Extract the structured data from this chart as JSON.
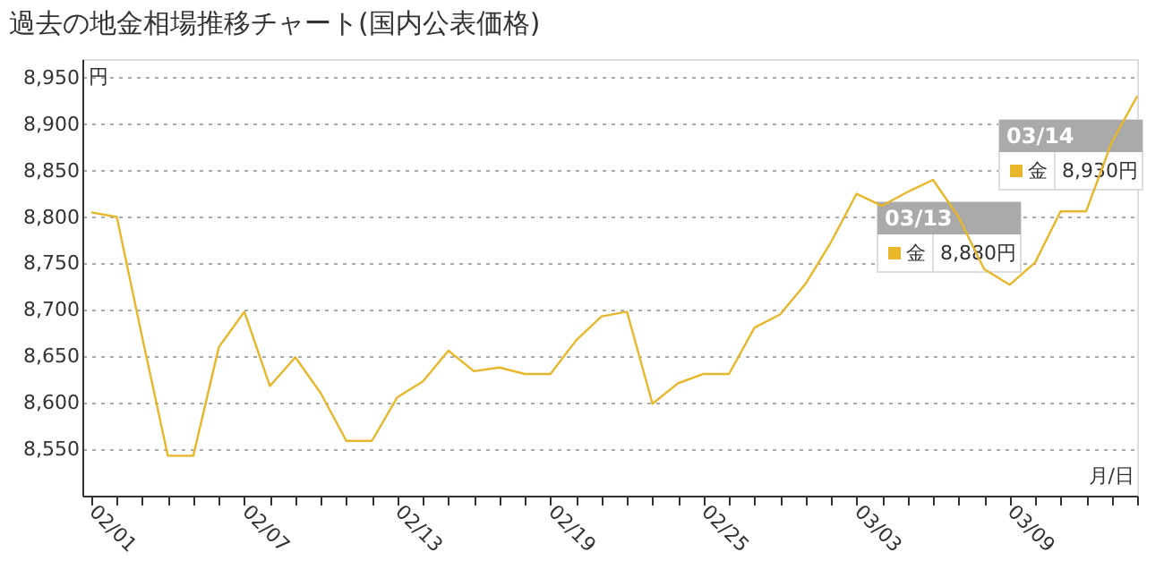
{
  "chart_data": {
    "type": "line",
    "title": "過去の地金相場推移チャート(国内公表価格)",
    "ylabel": "円",
    "xlabel": "月/日",
    "categories": [
      "02/01",
      null,
      null,
      null,
      null,
      null,
      "02/07",
      null,
      null,
      null,
      null,
      null,
      "02/13",
      null,
      null,
      null,
      null,
      null,
      "02/19",
      null,
      null,
      null,
      null,
      null,
      "02/25",
      null,
      null,
      null,
      null,
      null,
      "03/03",
      null,
      null,
      null,
      null,
      null,
      "03/09",
      null,
      null,
      null,
      null,
      null
    ],
    "series": [
      {
        "name": "金",
        "color": "#e8b62a",
        "values": [
          8805,
          8800,
          8670,
          8543,
          8543,
          8660,
          8698,
          8618,
          8649,
          8610,
          8559,
          8559,
          8606,
          8623,
          8656,
          8634,
          8638,
          8631,
          8631,
          8667,
          8693,
          8698,
          8599,
          8621,
          8631,
          8631,
          8681,
          8695,
          8728,
          8773,
          8825,
          8812,
          8827,
          8840,
          8800,
          8744,
          8727,
          8751,
          8806,
          8806,
          8880,
          8930
        ]
      }
    ],
    "ylim": [
      8500,
      8970
    ],
    "yticks": [
      {
        "value": 8550,
        "label": "8,550"
      },
      {
        "value": 8600,
        "label": "8,600"
      },
      {
        "value": 8650,
        "label": "8,650"
      },
      {
        "value": 8700,
        "label": "8,700"
      },
      {
        "value": 8750,
        "label": "8,750"
      },
      {
        "value": 8800,
        "label": "8,800"
      },
      {
        "value": 8850,
        "label": "8,850"
      },
      {
        "value": 8900,
        "label": "8,900"
      },
      {
        "value": 8950,
        "label": "8,950"
      }
    ],
    "grid": "y",
    "annotations": [
      "03/13",
      "8,880円",
      "03/14",
      "8,930円"
    ]
  }
}
